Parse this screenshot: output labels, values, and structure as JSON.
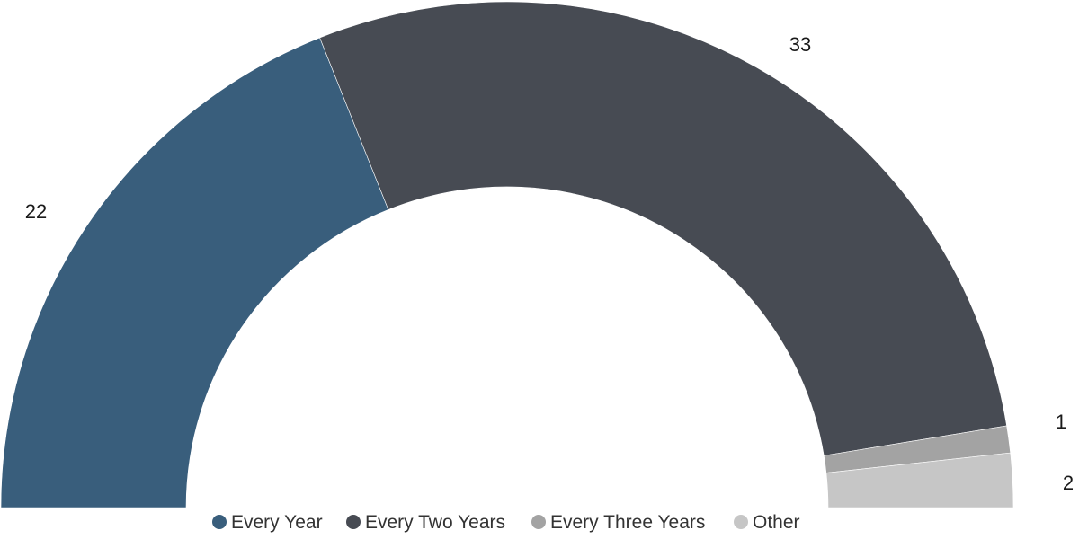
{
  "chart_data": {
    "type": "pie",
    "variant": "semi-donut",
    "title": "",
    "categories": [
      "Every Year",
      "Every Two Years",
      "Every Three Years",
      "Other"
    ],
    "values": [
      22,
      33,
      1,
      2
    ],
    "colors": [
      "#395e7c",
      "#474b53",
      "#a3a3a3",
      "#c6c6c6"
    ],
    "legend": {
      "position": "bottom-center",
      "entries": [
        "Every Year",
        "Every Two Years",
        "Every Three Years",
        "Other"
      ]
    }
  }
}
